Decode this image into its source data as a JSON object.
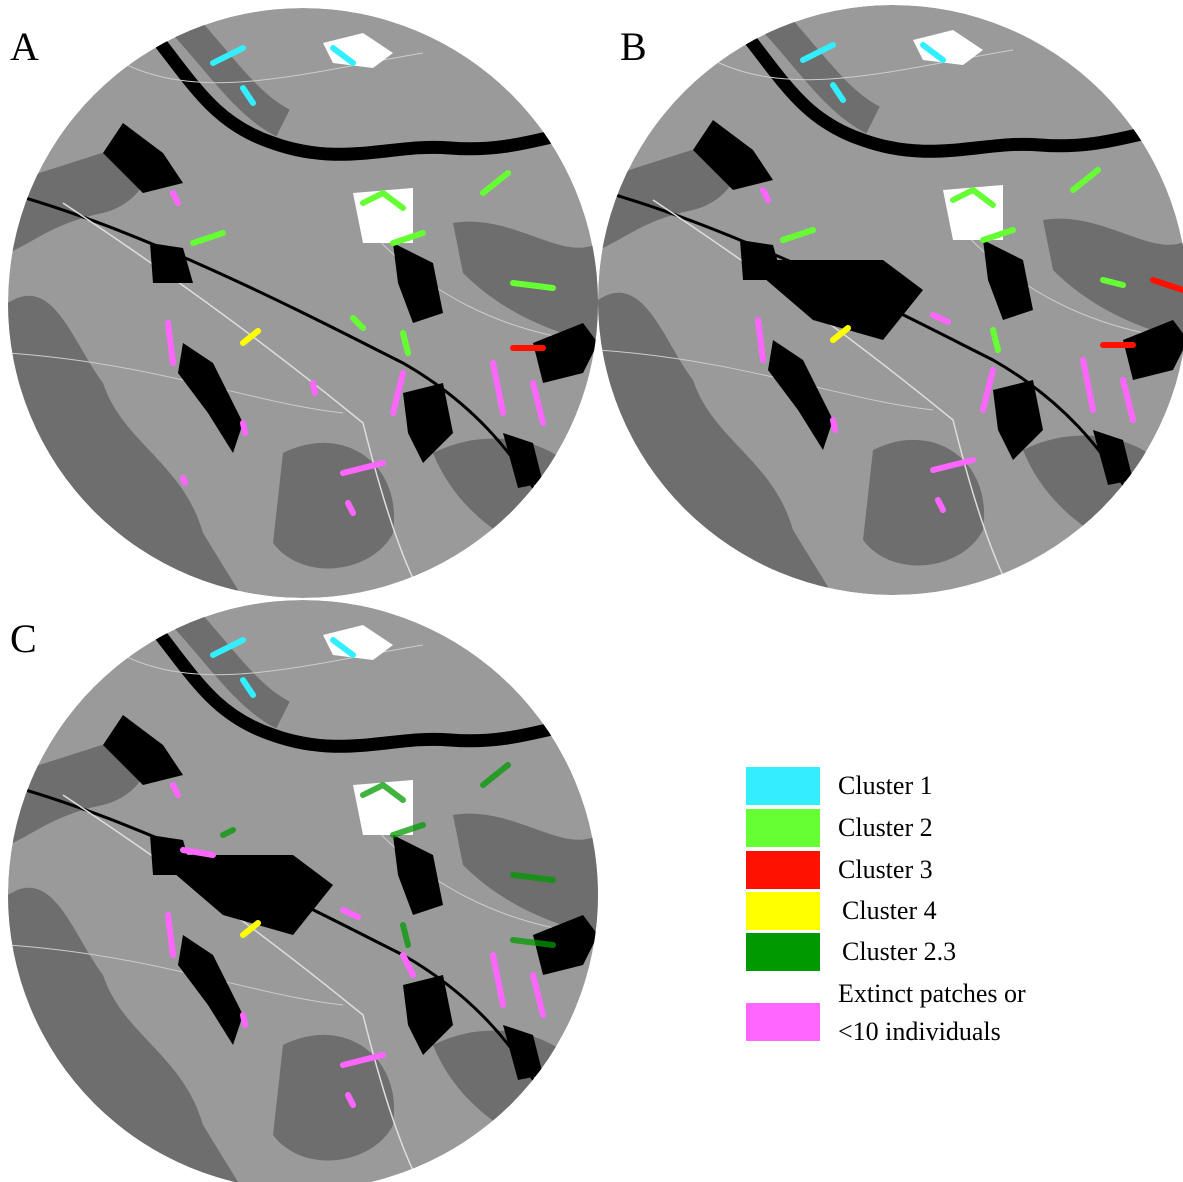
{
  "panels": [
    {
      "label": "A"
    },
    {
      "label": "B"
    },
    {
      "label": "C"
    }
  ],
  "legend": [
    {
      "label": "Cluster 1",
      "color": "#33eeff"
    },
    {
      "label": "Cluster 2",
      "color": "#66ff33"
    },
    {
      "label": "Cluster 3",
      "color": "#ff1100"
    },
    {
      "label": "Cluster 4",
      "color": "#ffff00"
    },
    {
      "label": "Cluster 2.3",
      "color": "#009900"
    },
    {
      "label": [
        "Extinct patches or",
        "<10 individuals"
      ],
      "color": "#ff66ff"
    }
  ]
}
